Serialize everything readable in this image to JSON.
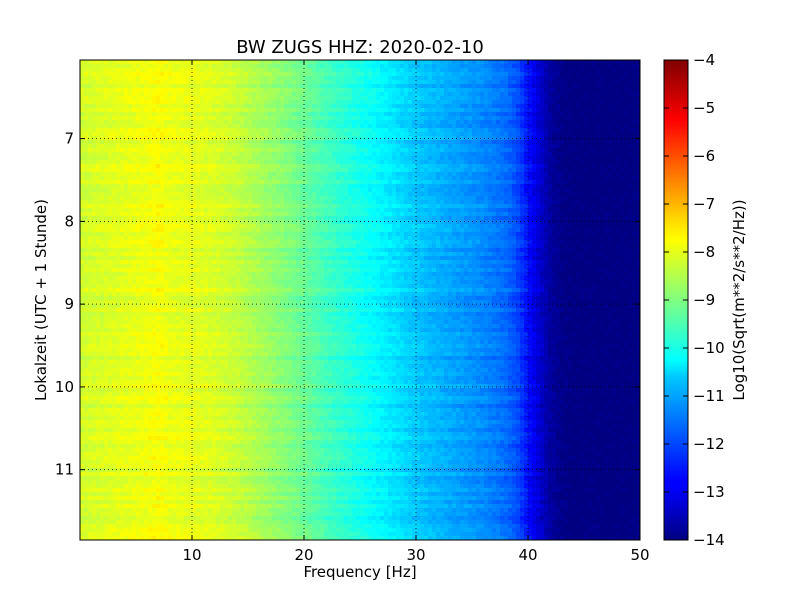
{
  "chart_data": {
    "type": "heatmap",
    "title": "BW ZUGS HHZ: 2020-02-10",
    "xlabel": "Frequency [Hz]",
    "ylabel": "Lokalzeit (UTC + 1 Stunde)",
    "xlim": [
      0,
      50
    ],
    "ylim": [
      11.85,
      6.05
    ],
    "y_inverted": true,
    "grid": true,
    "x_ticks": [
      10,
      20,
      30,
      40,
      50
    ],
    "x_tick_labels": [
      "10",
      "20",
      "30",
      "40",
      "50"
    ],
    "y_ticks": [
      7,
      8,
      9,
      10,
      11
    ],
    "y_tick_labels": [
      "7",
      "8",
      "9",
      "10",
      "11"
    ],
    "colormap": "jet",
    "colorbar": {
      "label": "Log10(Sqrt(m**2/s**2/Hz))",
      "range": [
        -14,
        -4
      ],
      "ticks": [
        -4,
        -5,
        -6,
        -7,
        -8,
        -9,
        -10,
        -11,
        -12,
        -13,
        -14
      ],
      "tick_labels": [
        "−4",
        "−5",
        "−6",
        "−7",
        "−8",
        "−9",
        "−10",
        "−11",
        "−12",
        "−13",
        "−14"
      ]
    },
    "frequency_profile": {
      "frequency_hz": [
        0,
        2,
        4,
        6,
        7,
        8,
        10,
        12,
        14,
        16,
        18,
        20,
        22,
        24,
        26,
        28,
        30,
        32,
        34,
        36,
        38,
        39,
        40,
        41,
        42,
        43,
        44,
        46,
        48,
        50
      ],
      "log_amplitude": [
        -8.2,
        -8.1,
        -8.0,
        -7.9,
        -7.8,
        -7.95,
        -8.0,
        -8.1,
        -8.3,
        -8.6,
        -8.9,
        -9.2,
        -9.6,
        -9.9,
        -10.2,
        -10.5,
        -10.8,
        -11.0,
        -11.2,
        -11.4,
        -11.7,
        -12.0,
        -12.6,
        -13.2,
        -13.7,
        -13.9,
        -14.0,
        -14.0,
        -14.0,
        -14.0
      ]
    }
  }
}
